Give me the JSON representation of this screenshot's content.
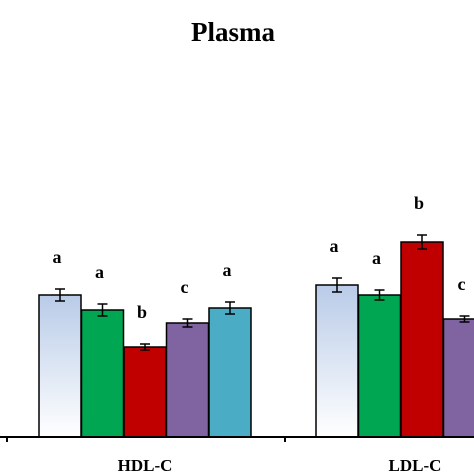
{
  "chart_data": {
    "type": "bar",
    "title": "Plasma",
    "xlabel": "",
    "ylabel": "",
    "grid": false,
    "legend": "none",
    "categories": [
      "HDL-C",
      "LDL-C"
    ],
    "series": [
      {
        "color": "#b9cbe8",
        "gradient_to": "#ffffff",
        "values": [
          1.42,
          1.52
        ],
        "errors": [
          0.06,
          0.07
        ],
        "labels": [
          "a",
          "a"
        ]
      },
      {
        "color": "#00a651",
        "values": [
          1.27,
          1.42
        ],
        "errors": [
          0.06,
          0.05
        ],
        "labels": [
          "a",
          "a"
        ]
      },
      {
        "color": "#c00000",
        "values": [
          0.9,
          1.95
        ],
        "errors": [
          0.03,
          0.07
        ],
        "labels": [
          "b",
          "b"
        ]
      },
      {
        "color": "#8064a2",
        "values": [
          1.14,
          1.18
        ],
        "errors": [
          0.04,
          0.03
        ],
        "labels": [
          "c",
          "c"
        ]
      },
      {
        "color": "#4bacc6",
        "values": [
          1.29,
          null
        ],
        "errors": [
          0.06,
          null
        ],
        "labels": [
          "a",
          ""
        ]
      }
    ]
  }
}
